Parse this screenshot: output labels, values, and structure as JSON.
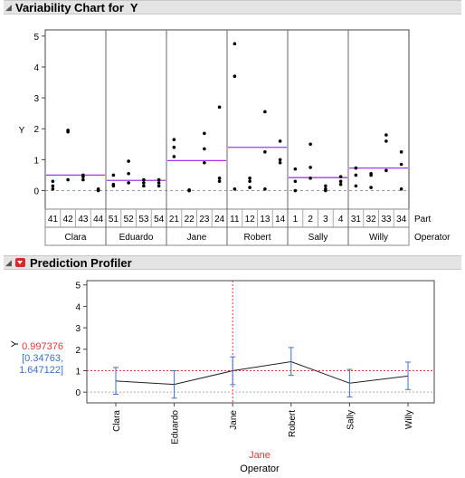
{
  "variability": {
    "header_title": "Variability Chart for  Y",
    "ylabel": "Y",
    "part_label": "Part",
    "operator_label": "Operator"
  },
  "profiler": {
    "header_title": "Prediction Profiler",
    "y_label": "Y",
    "y_value": "0.997376",
    "ci_line1": "[0.34763,",
    "ci_line2": "1.647122]",
    "current_x": "Jane",
    "xlabel": "Operator"
  },
  "colors": {
    "accent_red": "#e0383a",
    "ci_blue": "#3d6fc7",
    "mean_purple": "#a03ee0",
    "grid_gray": "#b0b0b0"
  },
  "chart_data": [
    {
      "type": "scatter",
      "title": "Variability Chart for  Y",
      "ylabel": "Y",
      "ylim": [
        -0.6,
        5.2
      ],
      "yticks": [
        0,
        1,
        2,
        3,
        4,
        5
      ],
      "operators": [
        {
          "name": "Clara",
          "mean": 0.5,
          "parts": [
            {
              "part": "41",
              "y": [
                0.05,
                0.15,
                0.3
              ]
            },
            {
              "part": "42",
              "y": [
                0.35,
                1.9,
                1.95
              ]
            },
            {
              "part": "43",
              "y": [
                0.35,
                0.45,
                0.5
              ]
            },
            {
              "part": "44",
              "y": [
                0.0,
                0.02,
                0.05
              ]
            }
          ]
        },
        {
          "name": "Eduardo",
          "mean": 0.33,
          "parts": [
            {
              "part": "51",
              "y": [
                0.15,
                0.2,
                0.5
              ]
            },
            {
              "part": "52",
              "y": [
                0.25,
                0.55,
                0.95
              ]
            },
            {
              "part": "53",
              "y": [
                0.15,
                0.25,
                0.35
              ]
            },
            {
              "part": "54",
              "y": [
                0.15,
                0.25,
                0.35
              ]
            }
          ]
        },
        {
          "name": "Jane",
          "mean": 0.97,
          "parts": [
            {
              "part": "21",
              "y": [
                1.1,
                1.4,
                1.65
              ]
            },
            {
              "part": "22",
              "y": [
                0.0,
                0.0,
                0.02
              ]
            },
            {
              "part": "23",
              "y": [
                0.9,
                1.35,
                1.85
              ]
            },
            {
              "part": "24",
              "y": [
                0.3,
                0.4,
                2.7
              ]
            }
          ]
        },
        {
          "name": "Robert",
          "mean": 1.4,
          "parts": [
            {
              "part": "11",
              "y": [
                0.05,
                3.7,
                4.75
              ]
            },
            {
              "part": "12",
              "y": [
                0.1,
                0.3,
                0.4
              ]
            },
            {
              "part": "13",
              "y": [
                0.05,
                1.25,
                2.55
              ]
            },
            {
              "part": "14",
              "y": [
                0.9,
                1.0,
                1.6
              ]
            }
          ]
        },
        {
          "name": "Sally",
          "mean": 0.42,
          "parts": [
            {
              "part": "1",
              "y": [
                0.0,
                0.3,
                0.7
              ]
            },
            {
              "part": "2",
              "y": [
                0.4,
                0.75,
                1.5
              ]
            },
            {
              "part": "3",
              "y": [
                0.0,
                0.05,
                0.15
              ]
            },
            {
              "part": "4",
              "y": [
                0.2,
                0.3,
                0.45
              ]
            }
          ]
        },
        {
          "name": "Willy",
          "mean": 0.73,
          "parts": [
            {
              "part": "31",
              "y": [
                0.15,
                0.5,
                0.73
              ]
            },
            {
              "part": "32",
              "y": [
                0.1,
                0.5,
                0.55
              ]
            },
            {
              "part": "33",
              "y": [
                0.65,
                1.6,
                1.8
              ]
            },
            {
              "part": "34",
              "y": [
                0.05,
                0.85,
                1.25
              ]
            }
          ]
        }
      ]
    },
    {
      "type": "line",
      "title": "Prediction Profiler",
      "xlabel": "Operator",
      "ylabel": "Y",
      "ylim": [
        -0.5,
        5.2
      ],
      "yticks": [
        0,
        1,
        2,
        3,
        4,
        5
      ],
      "reference_y": 0.997376,
      "current_x": "Jane",
      "categories": [
        "Clara",
        "Eduardo",
        "Jane",
        "Robert",
        "Sally",
        "Willy"
      ],
      "series": [
        {
          "values": [
            0.52,
            0.36,
            0.997,
            1.42,
            0.42,
            0.75
          ],
          "lower": [
            -0.1,
            -0.28,
            0.348,
            0.78,
            -0.22,
            0.12
          ],
          "upper": [
            1.15,
            1.0,
            1.647,
            2.08,
            1.06,
            1.4
          ]
        }
      ]
    }
  ]
}
